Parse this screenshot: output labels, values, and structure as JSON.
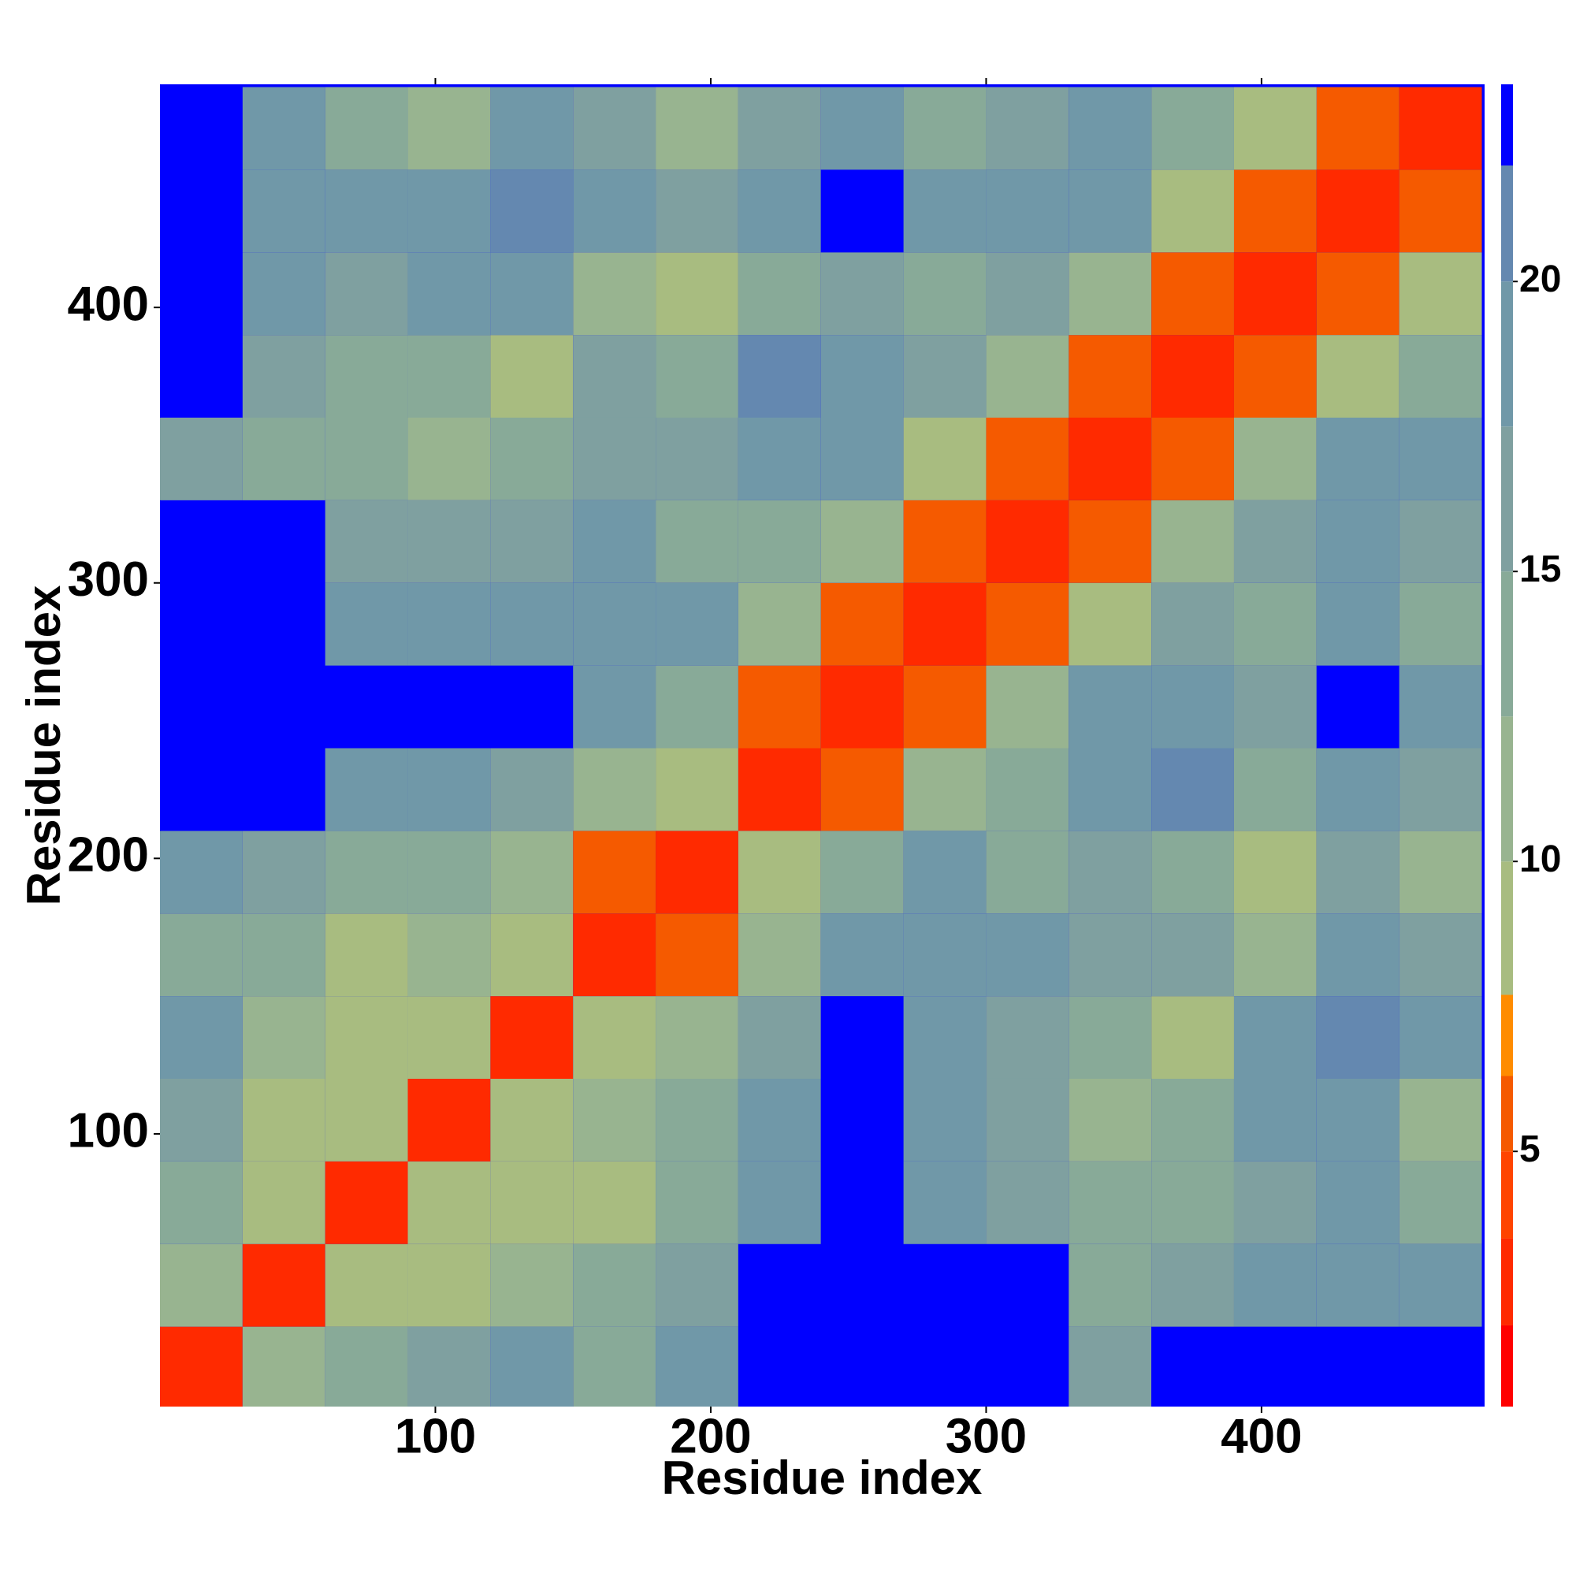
{
  "chart_data": {
    "type": "heatmap",
    "x_label": "Residue index",
    "y_label": "Residue index",
    "xlim": [
      0,
      481
    ],
    "ylim": [
      1,
      481
    ],
    "xticks": [
      100,
      200,
      300,
      400
    ],
    "yticks": [
      100,
      200,
      300,
      400
    ],
    "bins": [
      0,
      30,
      60,
      90,
      120,
      150,
      180,
      210,
      240,
      270,
      300,
      330,
      360,
      390,
      420,
      450,
      480
    ],
    "z": [
      [
        3,
        12,
        14,
        16,
        18,
        15,
        20,
        23,
        23,
        23,
        23,
        16,
        23,
        23,
        23,
        23
      ],
      [
        12,
        3,
        8,
        10,
        12,
        14,
        16,
        23,
        23,
        23,
        23,
        14,
        16,
        20,
        20,
        18
      ],
      [
        14,
        8,
        3,
        8,
        10,
        10,
        14,
        18,
        23,
        18,
        16,
        14,
        14,
        17,
        20,
        14
      ],
      [
        16,
        10,
        8,
        3,
        8,
        12,
        14,
        20,
        23,
        18,
        16,
        12,
        14,
        18,
        20,
        12
      ],
      [
        18,
        12,
        10,
        8,
        3,
        8,
        12,
        16,
        23,
        20,
        16,
        14,
        10,
        20,
        22,
        18
      ],
      [
        15,
        14,
        10,
        12,
        8,
        3,
        6,
        12,
        20,
        20,
        18,
        16,
        16,
        12,
        18,
        16
      ],
      [
        20,
        16,
        14,
        14,
        12,
        6,
        3,
        8,
        14,
        18,
        14,
        16,
        14,
        10,
        16,
        12
      ],
      [
        23,
        23,
        18,
        20,
        16,
        12,
        8,
        3,
        6,
        12,
        14,
        20,
        22,
        14,
        18,
        16
      ],
      [
        23,
        23,
        23,
        23,
        23,
        20,
        14,
        6,
        3,
        6,
        12,
        18,
        20,
        16,
        23,
        20
      ],
      [
        23,
        23,
        18,
        18,
        20,
        20,
        18,
        12,
        6,
        3,
        6,
        10,
        16,
        14,
        20,
        14
      ],
      [
        23,
        23,
        16,
        16,
        16,
        18,
        14,
        14,
        12,
        6,
        3,
        6,
        12,
        16,
        20,
        16
      ],
      [
        16,
        14,
        14,
        12,
        14,
        16,
        16,
        20,
        18,
        10,
        6,
        3,
        6,
        12,
        18,
        20
      ],
      [
        23,
        16,
        14,
        14,
        10,
        16,
        14,
        22,
        20,
        16,
        12,
        6,
        3,
        6,
        10,
        14
      ],
      [
        23,
        20,
        17,
        18,
        20,
        12,
        10,
        14,
        16,
        14,
        16,
        12,
        6,
        3,
        6,
        10
      ],
      [
        23,
        20,
        20,
        20,
        22,
        18,
        16,
        18,
        23,
        20,
        20,
        18,
        10,
        6,
        3,
        6
      ],
      [
        23,
        18,
        14,
        12,
        18,
        16,
        12,
        16,
        20,
        14,
        16,
        20,
        14,
        10,
        6,
        3
      ]
    ],
    "colorbar": {
      "lim": [
        0.6,
        23.4
      ],
      "ticks": [
        5,
        10,
        15,
        20
      ],
      "levels": [
        0.6,
        2,
        3.5,
        5,
        6.3,
        7.7,
        10,
        12.5,
        15,
        17.5,
        20,
        22,
        23.4
      ],
      "colors": [
        "#ff0000",
        "#ff2a00",
        "#ff4400",
        "#f55a00",
        "#ff8c00",
        "#a8bc80",
        "#98b490",
        "#88aa98",
        "#7fa0a0",
        "#7098a8",
        "#6488b0",
        "#0000ff"
      ]
    }
  }
}
